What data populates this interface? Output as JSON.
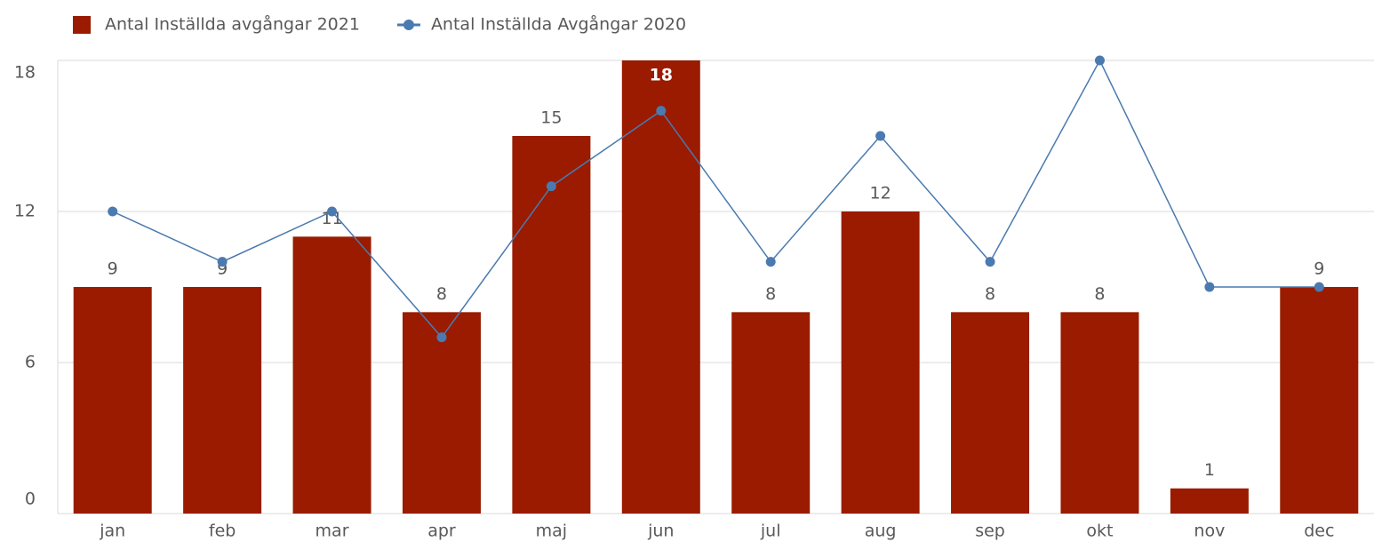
{
  "chart_data": {
    "type": "combo",
    "categories": [
      "jan",
      "feb",
      "mar",
      "apr",
      "maj",
      "jun",
      "jul",
      "aug",
      "sep",
      "okt",
      "nov",
      "dec"
    ],
    "series": [
      {
        "name": "Antal Inställda avgångar 2021",
        "type": "bar",
        "color": "#9a1b00",
        "values": [
          9,
          9,
          11,
          8,
          15,
          18,
          8,
          12,
          8,
          8,
          1,
          9
        ]
      },
      {
        "name": "Antal Inställda Avgångar 2020",
        "type": "line",
        "color": "#4a7ab0",
        "values": [
          12,
          10,
          12,
          7,
          13,
          16,
          10,
          15,
          10,
          18,
          9,
          9
        ]
      }
    ],
    "ylim": [
      0,
      18
    ],
    "yticks": [
      0,
      6,
      12,
      18
    ],
    "grid": true
  }
}
